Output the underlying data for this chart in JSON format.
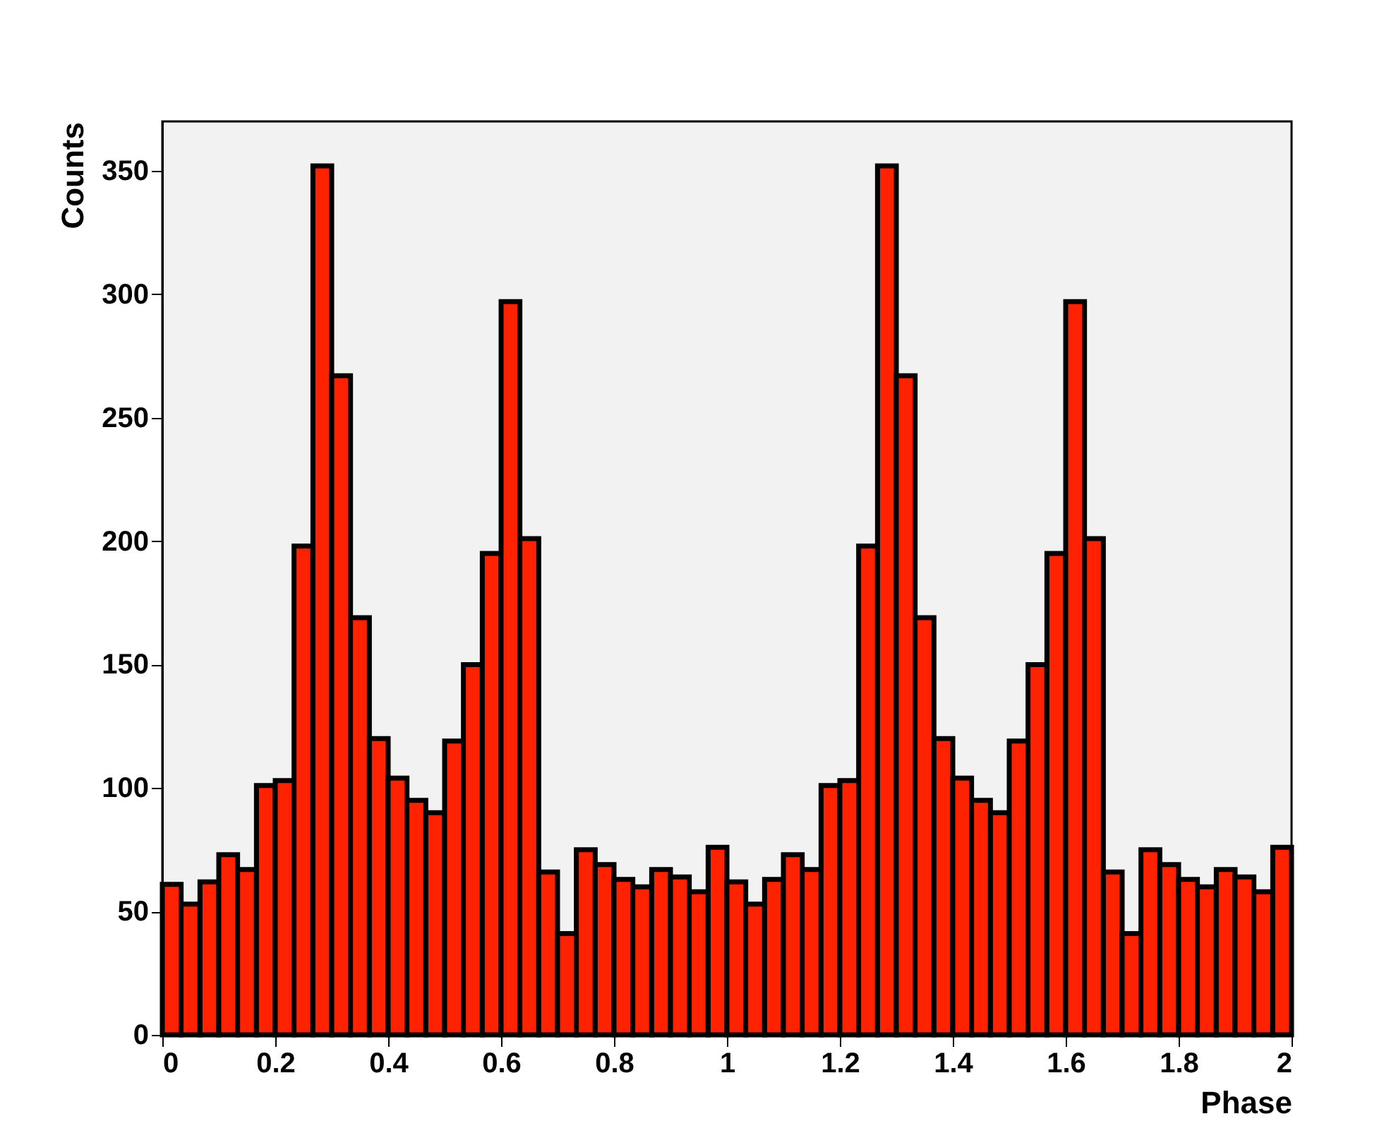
{
  "chart_data": {
    "type": "histogram",
    "xlabel": "Phase",
    "ylabel": "Counts",
    "color": "#ff2200",
    "bins": [
      0,
      0.0333,
      0.0667,
      0.1,
      0.1333,
      0.1667,
      0.2,
      0.2333,
      0.2667,
      0.3,
      0.3333,
      0.3667,
      0.4,
      0.4333,
      0.4667,
      0.5,
      0.5333,
      0.5667,
      0.6,
      0.6333,
      0.6667,
      0.7,
      0.7333,
      0.7667,
      0.8,
      0.8333,
      0.8667,
      0.9,
      0.9333,
      0.9667,
      1,
      1.0333,
      1.0667,
      1.1,
      1.1333,
      1.1667,
      1.2,
      1.2333,
      1.2667,
      1.3,
      1.3333,
      1.3667,
      1.4,
      1.4333,
      1.4667,
      1.5,
      1.5333,
      1.5667,
      1.6,
      1.6333,
      1.6667,
      1.7,
      1.7333,
      1.7667,
      1.8,
      1.8333,
      1.8667,
      1.9,
      1.9333,
      1.9667,
      2
    ],
    "values": [
      61,
      53,
      62,
      73,
      67,
      101,
      103,
      198,
      352,
      267,
      169,
      120,
      104,
      95,
      90,
      119,
      150,
      195,
      297,
      201,
      66,
      41,
      75,
      69,
      63,
      60,
      67,
      64,
      58,
      76,
      62,
      53,
      63,
      73,
      67,
      101,
      103,
      198,
      352,
      267,
      169,
      120,
      104,
      95,
      90,
      119,
      150,
      195,
      297,
      201,
      66,
      41,
      75,
      69,
      63,
      60,
      67,
      64,
      58,
      76
    ],
    "xlim": [
      0,
      2
    ],
    "ylim": [
      0,
      370
    ],
    "xticks": [
      0,
      0.2,
      0.4,
      0.6,
      0.8,
      1,
      1.2,
      1.4,
      1.6,
      1.8,
      2
    ],
    "yticks": [
      0,
      50,
      100,
      150,
      200,
      250,
      300,
      350
    ]
  }
}
